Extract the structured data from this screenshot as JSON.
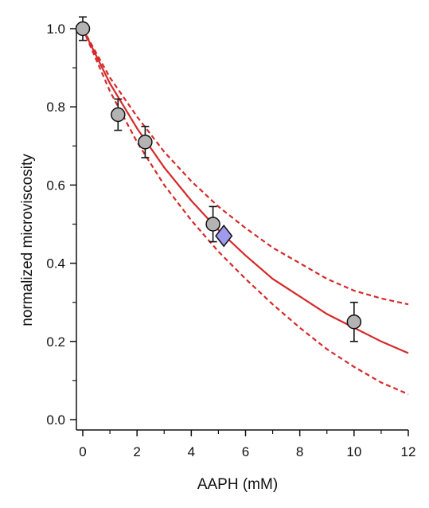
{
  "chart_data": {
    "type": "scatter",
    "title": "",
    "xlabel": "AAPH (mM)",
    "ylabel": "normalized microviscosity",
    "xlim": [
      0,
      12
    ],
    "ylim": [
      0,
      1.0
    ],
    "x_ticks": [
      0,
      2,
      4,
      6,
      8,
      10,
      12
    ],
    "y_ticks": [
      0.0,
      0.2,
      0.4,
      0.6,
      0.8,
      1.0
    ],
    "x_tick_labels": [
      "0",
      "2",
      "4",
      "6",
      "8",
      "10",
      "12"
    ],
    "y_tick_labels": [
      "0.0",
      "0.2",
      "0.4",
      "0.6",
      "0.8",
      "1.0"
    ],
    "grid": false,
    "legend": "none",
    "series": [
      {
        "kind": "points",
        "marker": "circle",
        "color": "#b3b3b3",
        "points": [
          {
            "x": 0,
            "y": 1.0,
            "err": 0.03
          },
          {
            "x": 1.3,
            "y": 0.78,
            "err": 0.04
          },
          {
            "x": 2.3,
            "y": 0.71,
            "err": 0.04
          },
          {
            "x": 4.8,
            "y": 0.5,
            "err": 0.045
          },
          {
            "x": 10.0,
            "y": 0.25,
            "err": 0.05
          }
        ]
      },
      {
        "kind": "points",
        "marker": "diamond",
        "color": "#9f9aee",
        "points": [
          {
            "x": 5.2,
            "y": 0.47
          }
        ]
      },
      {
        "kind": "line",
        "style": "solid",
        "color": "#d42a2a",
        "x": [
          0,
          1,
          2,
          3,
          4,
          5,
          6,
          7,
          8,
          9,
          10,
          11,
          12
        ],
        "y": [
          1.0,
          0.86,
          0.745,
          0.645,
          0.56,
          0.485,
          0.42,
          0.36,
          0.315,
          0.27,
          0.235,
          0.2,
          0.17
        ]
      },
      {
        "kind": "line",
        "style": "dashed",
        "color": "#d42a2a",
        "x": [
          0,
          1,
          2,
          3,
          4,
          5,
          6,
          7,
          8,
          9,
          10,
          11,
          12
        ],
        "y": [
          1.0,
          0.875,
          0.775,
          0.685,
          0.61,
          0.545,
          0.49,
          0.44,
          0.4,
          0.36,
          0.33,
          0.31,
          0.295
        ]
      },
      {
        "kind": "line",
        "style": "dashed",
        "color": "#d42a2a",
        "x": [
          0,
          1,
          2,
          3,
          4,
          5,
          6,
          7,
          8,
          9,
          10,
          11,
          12
        ],
        "y": [
          1.0,
          0.84,
          0.71,
          0.6,
          0.51,
          0.43,
          0.36,
          0.295,
          0.235,
          0.18,
          0.135,
          0.095,
          0.065
        ]
      }
    ]
  }
}
